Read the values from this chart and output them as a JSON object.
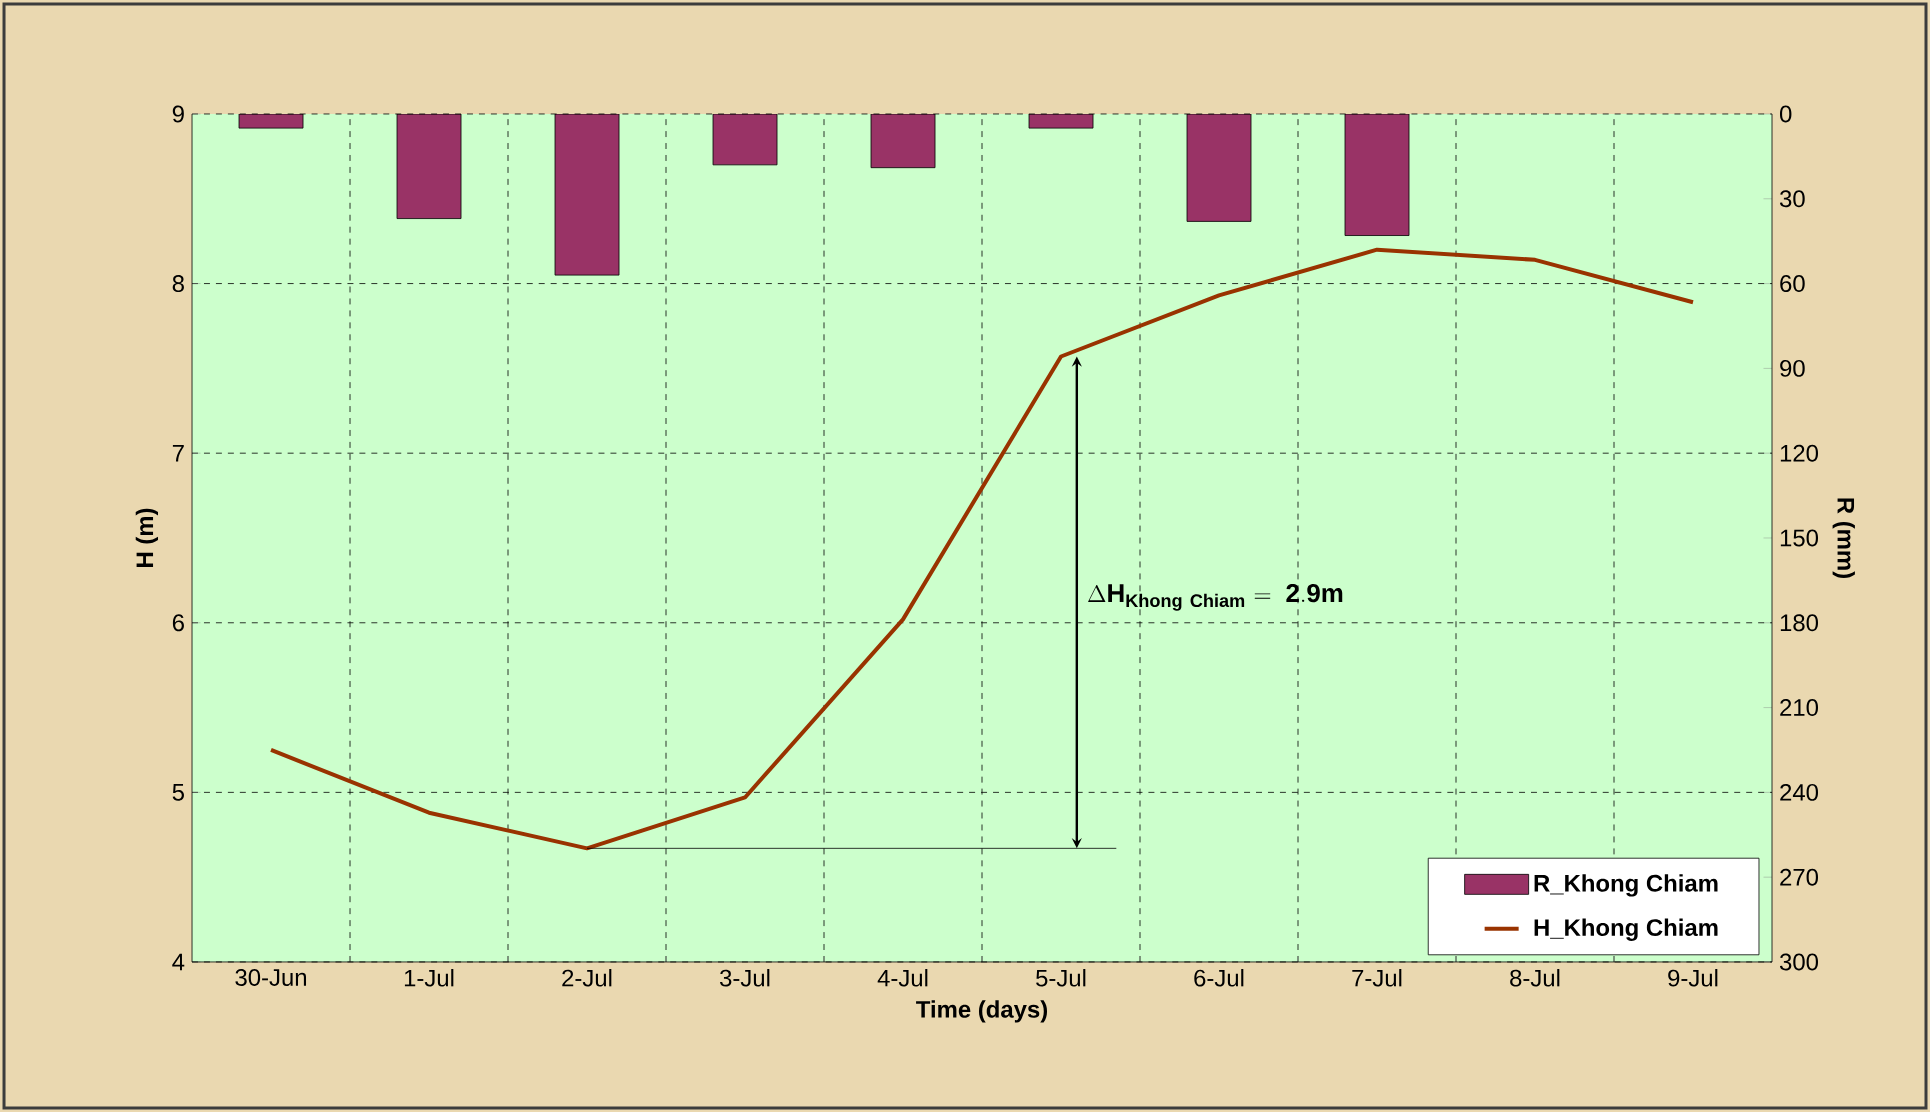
{
  "chart_data": {
    "type": "bar",
    "categories": [
      "30-Jun",
      "1-Jul",
      "2-Jul",
      "3-Jul",
      "4-Jul",
      "5-Jul",
      "6-Jul",
      "7-Jul",
      "8-Jul",
      "9-Jul"
    ],
    "xlabel": "Time (days)",
    "ylabel": "H (m)",
    "y2label": "R (mm)",
    "ylim": [
      4,
      9
    ],
    "yticks": [
      4,
      5,
      6,
      7,
      8,
      9
    ],
    "y2lim": [
      300,
      0
    ],
    "y2ticks": [
      0,
      30,
      60,
      90,
      120,
      150,
      180,
      210,
      240,
      270,
      300
    ],
    "series": [
      {
        "name": "R_Khong Chiam",
        "axis": "y2",
        "color": "#993366",
        "values": [
          5,
          37,
          57,
          18,
          19,
          5,
          38,
          43,
          null,
          null
        ]
      },
      {
        "name": "H_Khong Chiam",
        "type": "line",
        "color": "#993300",
        "values": [
          5.25,
          4.88,
          4.67,
          4.97,
          6.02,
          7.57,
          7.93,
          8.2,
          8.14,
          7.89
        ]
      }
    ],
    "annotations": [
      "\\Delta\\mathbf{H}_{\\mathbf{Khong\\ Chiam}}\\mathbf{\\ =\\ 2.9m}"
    ],
    "ref_lines": [
      {
        "axis": "y",
        "value": 4.67
      }
    ],
    "grid": true,
    "legend": "bottom right"
  }
}
